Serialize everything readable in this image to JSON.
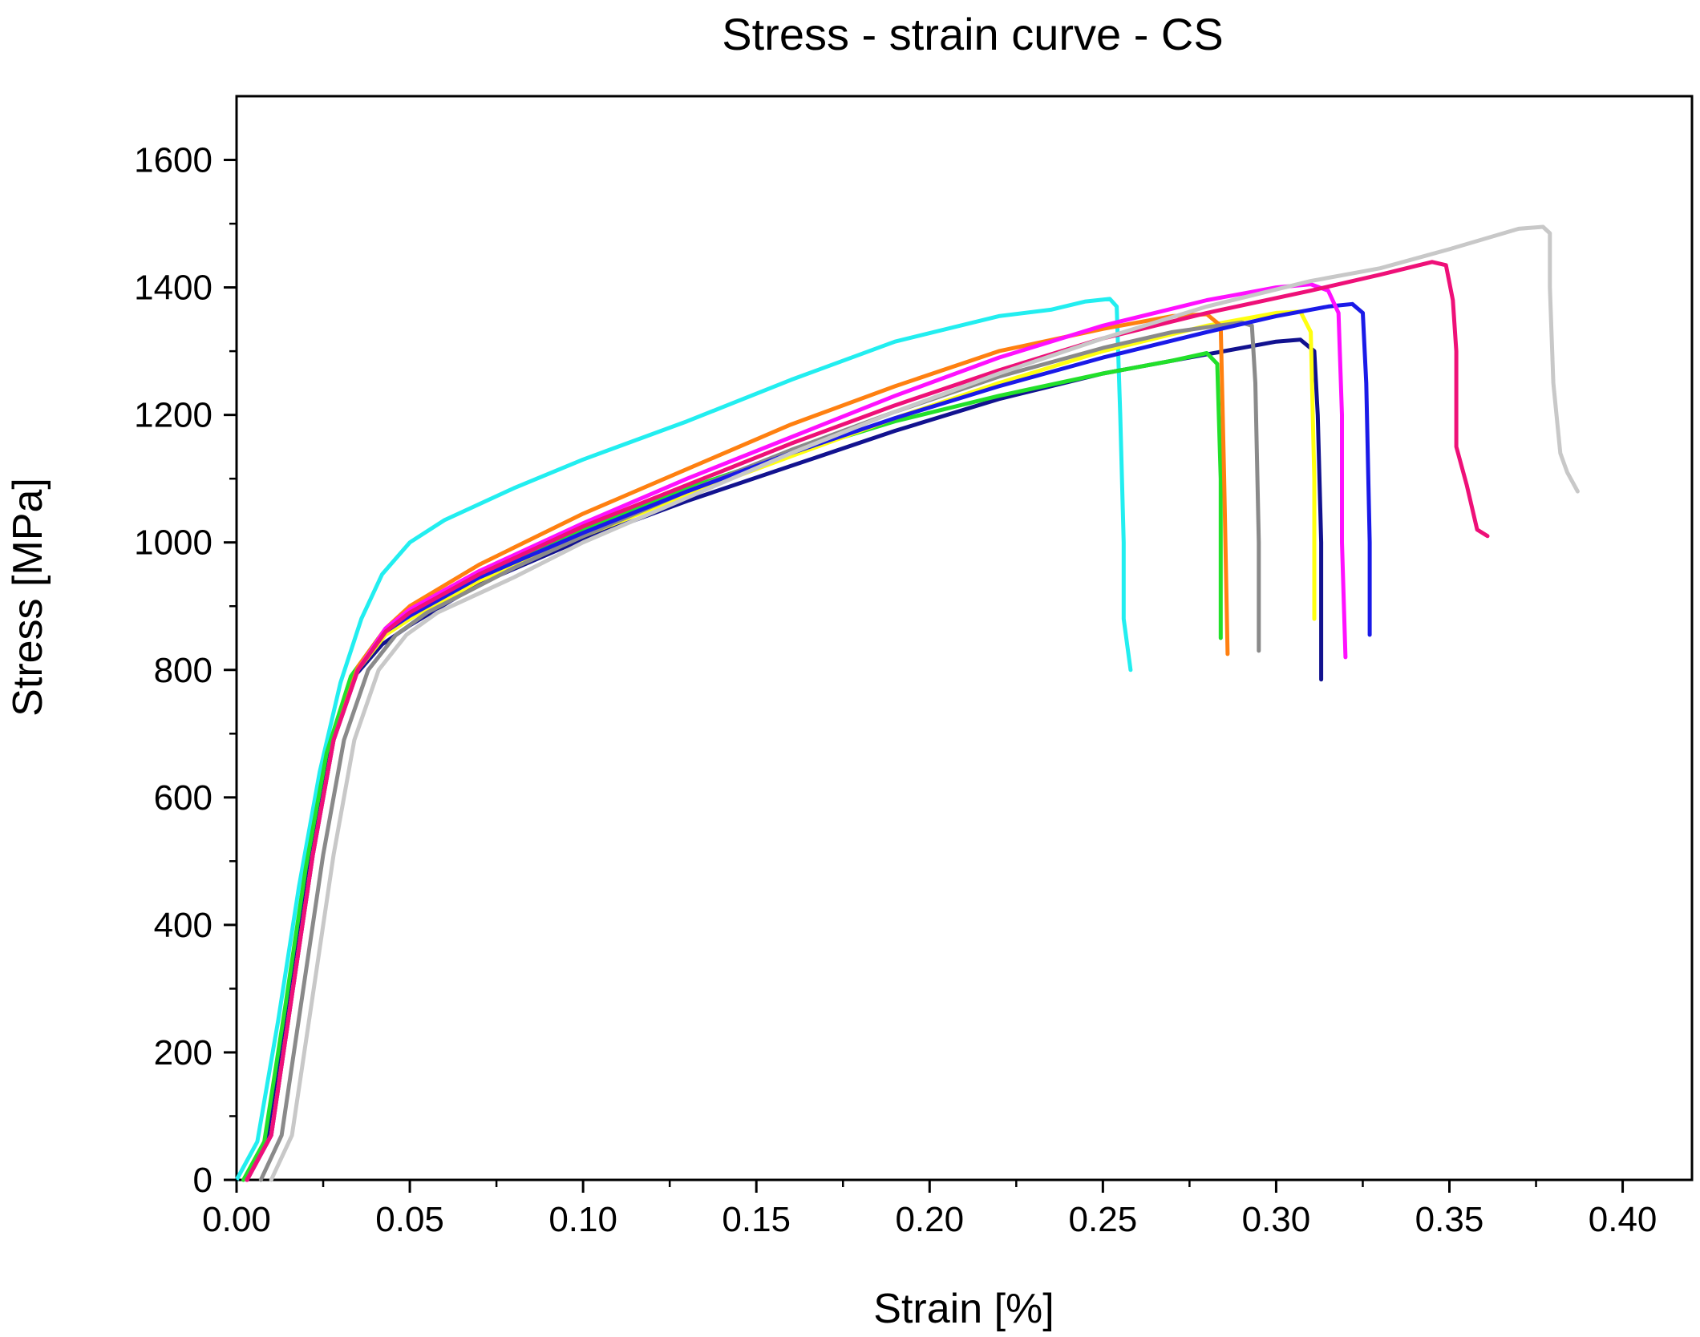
{
  "chart_data": {
    "type": "line",
    "title": "Stress - strain curve - CS",
    "xlabel": "Strain [%]",
    "ylabel": "Stress [MPa]",
    "xlim": [
      0,
      0.42
    ],
    "ylim": [
      0,
      1700
    ],
    "xticks": [
      0.0,
      0.05,
      0.1,
      0.15,
      0.2,
      0.25,
      0.3,
      0.35,
      0.4
    ],
    "xtick_labels": [
      "0.00",
      "0.05",
      "0.10",
      "0.15",
      "0.20",
      "0.25",
      "0.30",
      "0.35",
      "0.40"
    ],
    "yticks": [
      0,
      200,
      400,
      600,
      800,
      1000,
      1200,
      1400,
      1600
    ],
    "ytick_labels": [
      "0",
      "200",
      "400",
      "600",
      "800",
      "1000",
      "1200",
      "1400",
      "1600"
    ],
    "grid": false,
    "legend": "none",
    "series": [
      {
        "name": "cyan",
        "color": "#22EEF0",
        "points": [
          [
            0.0,
            0
          ],
          [
            0.006,
            60
          ],
          [
            0.012,
            250
          ],
          [
            0.018,
            460
          ],
          [
            0.024,
            640
          ],
          [
            0.03,
            780
          ],
          [
            0.036,
            880
          ],
          [
            0.042,
            950
          ],
          [
            0.05,
            1000
          ],
          [
            0.06,
            1035
          ],
          [
            0.08,
            1085
          ],
          [
            0.1,
            1130
          ],
          [
            0.13,
            1190
          ],
          [
            0.16,
            1255
          ],
          [
            0.19,
            1315
          ],
          [
            0.22,
            1355
          ],
          [
            0.235,
            1365
          ],
          [
            0.245,
            1378
          ],
          [
            0.252,
            1382
          ],
          [
            0.254,
            1370
          ],
          [
            0.255,
            1200
          ],
          [
            0.256,
            1000
          ],
          [
            0.256,
            880
          ],
          [
            0.258,
            800
          ]
        ]
      },
      {
        "name": "navy",
        "color": "#12128F",
        "points": [
          [
            0.003,
            0
          ],
          [
            0.009,
            60
          ],
          [
            0.015,
            280
          ],
          [
            0.021,
            500
          ],
          [
            0.027,
            680
          ],
          [
            0.034,
            790
          ],
          [
            0.042,
            840
          ],
          [
            0.05,
            870
          ],
          [
            0.07,
            935
          ],
          [
            0.1,
            1005
          ],
          [
            0.13,
            1065
          ],
          [
            0.16,
            1120
          ],
          [
            0.19,
            1175
          ],
          [
            0.22,
            1225
          ],
          [
            0.25,
            1265
          ],
          [
            0.28,
            1295
          ],
          [
            0.3,
            1315
          ],
          [
            0.307,
            1318
          ],
          [
            0.311,
            1300
          ],
          [
            0.312,
            1200
          ],
          [
            0.313,
            1000
          ],
          [
            0.313,
            785
          ]
        ]
      },
      {
        "name": "green",
        "color": "#22E02A",
        "points": [
          [
            0.002,
            0
          ],
          [
            0.008,
            60
          ],
          [
            0.014,
            270
          ],
          [
            0.02,
            490
          ],
          [
            0.026,
            670
          ],
          [
            0.033,
            790
          ],
          [
            0.041,
            850
          ],
          [
            0.05,
            880
          ],
          [
            0.07,
            945
          ],
          [
            0.1,
            1020
          ],
          [
            0.13,
            1085
          ],
          [
            0.16,
            1140
          ],
          [
            0.19,
            1190
          ],
          [
            0.22,
            1230
          ],
          [
            0.25,
            1265
          ],
          [
            0.27,
            1285
          ],
          [
            0.28,
            1297
          ],
          [
            0.283,
            1280
          ],
          [
            0.284,
            1100
          ],
          [
            0.284,
            850
          ]
        ]
      },
      {
        "name": "yellow",
        "color": "#FFFF10",
        "points": [
          [
            0.003,
            0
          ],
          [
            0.01,
            70
          ],
          [
            0.016,
            290
          ],
          [
            0.022,
            510
          ],
          [
            0.028,
            690
          ],
          [
            0.035,
            800
          ],
          [
            0.043,
            855
          ],
          [
            0.05,
            880
          ],
          [
            0.07,
            940
          ],
          [
            0.1,
            1010
          ],
          [
            0.13,
            1075
          ],
          [
            0.16,
            1135
          ],
          [
            0.19,
            1195
          ],
          [
            0.22,
            1250
          ],
          [
            0.25,
            1300
          ],
          [
            0.28,
            1340
          ],
          [
            0.3,
            1360
          ],
          [
            0.307,
            1362
          ],
          [
            0.31,
            1330
          ],
          [
            0.311,
            1100
          ],
          [
            0.311,
            880
          ]
        ]
      },
      {
        "name": "orange",
        "color": "#FF8010",
        "points": [
          [
            0.003,
            0
          ],
          [
            0.01,
            70
          ],
          [
            0.016,
            290
          ],
          [
            0.022,
            510
          ],
          [
            0.028,
            690
          ],
          [
            0.035,
            805
          ],
          [
            0.043,
            865
          ],
          [
            0.05,
            900
          ],
          [
            0.07,
            965
          ],
          [
            0.1,
            1045
          ],
          [
            0.13,
            1115
          ],
          [
            0.16,
            1185
          ],
          [
            0.19,
            1245
          ],
          [
            0.22,
            1300
          ],
          [
            0.25,
            1335
          ],
          [
            0.27,
            1355
          ],
          [
            0.28,
            1358
          ],
          [
            0.284,
            1340
          ],
          [
            0.285,
            1100
          ],
          [
            0.286,
            825
          ]
        ]
      },
      {
        "name": "gray",
        "color": "#8A8A8A",
        "points": [
          [
            0.007,
            0
          ],
          [
            0.013,
            70
          ],
          [
            0.019,
            290
          ],
          [
            0.025,
            510
          ],
          [
            0.031,
            690
          ],
          [
            0.038,
            800
          ],
          [
            0.046,
            855
          ],
          [
            0.055,
            890
          ],
          [
            0.08,
            960
          ],
          [
            0.1,
            1010
          ],
          [
            0.13,
            1080
          ],
          [
            0.16,
            1145
          ],
          [
            0.19,
            1205
          ],
          [
            0.22,
            1260
          ],
          [
            0.25,
            1305
          ],
          [
            0.27,
            1330
          ],
          [
            0.29,
            1345
          ],
          [
            0.293,
            1340
          ],
          [
            0.294,
            1250
          ],
          [
            0.295,
            1000
          ],
          [
            0.295,
            830
          ]
        ]
      },
      {
        "name": "blue",
        "color": "#1A1AE8",
        "points": [
          [
            0.003,
            0
          ],
          [
            0.01,
            70
          ],
          [
            0.016,
            290
          ],
          [
            0.022,
            510
          ],
          [
            0.028,
            690
          ],
          [
            0.035,
            800
          ],
          [
            0.043,
            860
          ],
          [
            0.05,
            885
          ],
          [
            0.07,
            945
          ],
          [
            0.1,
            1015
          ],
          [
            0.13,
            1080
          ],
          [
            0.16,
            1140
          ],
          [
            0.19,
            1195
          ],
          [
            0.22,
            1245
          ],
          [
            0.25,
            1290
          ],
          [
            0.28,
            1330
          ],
          [
            0.3,
            1355
          ],
          [
            0.315,
            1370
          ],
          [
            0.322,
            1374
          ],
          [
            0.325,
            1360
          ],
          [
            0.326,
            1250
          ],
          [
            0.327,
            1000
          ],
          [
            0.327,
            855
          ]
        ]
      },
      {
        "name": "magenta",
        "color": "#FF10FF",
        "points": [
          [
            0.003,
            0
          ],
          [
            0.01,
            70
          ],
          [
            0.016,
            290
          ],
          [
            0.022,
            510
          ],
          [
            0.028,
            690
          ],
          [
            0.035,
            800
          ],
          [
            0.043,
            865
          ],
          [
            0.05,
            895
          ],
          [
            0.07,
            955
          ],
          [
            0.1,
            1030
          ],
          [
            0.13,
            1100
          ],
          [
            0.16,
            1165
          ],
          [
            0.19,
            1230
          ],
          [
            0.22,
            1290
          ],
          [
            0.25,
            1340
          ],
          [
            0.28,
            1380
          ],
          [
            0.3,
            1400
          ],
          [
            0.31,
            1405
          ],
          [
            0.315,
            1395
          ],
          [
            0.318,
            1360
          ],
          [
            0.319,
            1200
          ],
          [
            0.319,
            1000
          ],
          [
            0.32,
            820
          ]
        ]
      },
      {
        "name": "pink",
        "color": "#EE1078",
        "points": [
          [
            0.003,
            0
          ],
          [
            0.01,
            70
          ],
          [
            0.016,
            290
          ],
          [
            0.022,
            510
          ],
          [
            0.028,
            690
          ],
          [
            0.035,
            800
          ],
          [
            0.043,
            860
          ],
          [
            0.05,
            890
          ],
          [
            0.07,
            950
          ],
          [
            0.1,
            1025
          ],
          [
            0.13,
            1090
          ],
          [
            0.16,
            1155
          ],
          [
            0.19,
            1215
          ],
          [
            0.22,
            1270
          ],
          [
            0.25,
            1320
          ],
          [
            0.28,
            1360
          ],
          [
            0.31,
            1395
          ],
          [
            0.33,
            1420
          ],
          [
            0.345,
            1440
          ],
          [
            0.349,
            1435
          ],
          [
            0.351,
            1380
          ],
          [
            0.352,
            1300
          ],
          [
            0.352,
            1150
          ],
          [
            0.355,
            1090
          ],
          [
            0.358,
            1020
          ],
          [
            0.361,
            1010
          ]
        ]
      },
      {
        "name": "lightgray",
        "color": "#C8C8C8",
        "points": [
          [
            0.01,
            0
          ],
          [
            0.016,
            70
          ],
          [
            0.022,
            290
          ],
          [
            0.028,
            510
          ],
          [
            0.034,
            690
          ],
          [
            0.041,
            800
          ],
          [
            0.049,
            855
          ],
          [
            0.058,
            890
          ],
          [
            0.08,
            945
          ],
          [
            0.1,
            1000
          ],
          [
            0.13,
            1070
          ],
          [
            0.16,
            1140
          ],
          [
            0.19,
            1205
          ],
          [
            0.22,
            1265
          ],
          [
            0.25,
            1320
          ],
          [
            0.28,
            1370
          ],
          [
            0.31,
            1410
          ],
          [
            0.33,
            1430
          ],
          [
            0.35,
            1460
          ],
          [
            0.37,
            1492
          ],
          [
            0.377,
            1495
          ],
          [
            0.379,
            1485
          ],
          [
            0.379,
            1400
          ],
          [
            0.38,
            1250
          ],
          [
            0.382,
            1140
          ],
          [
            0.384,
            1110
          ],
          [
            0.387,
            1080
          ]
        ]
      }
    ]
  }
}
